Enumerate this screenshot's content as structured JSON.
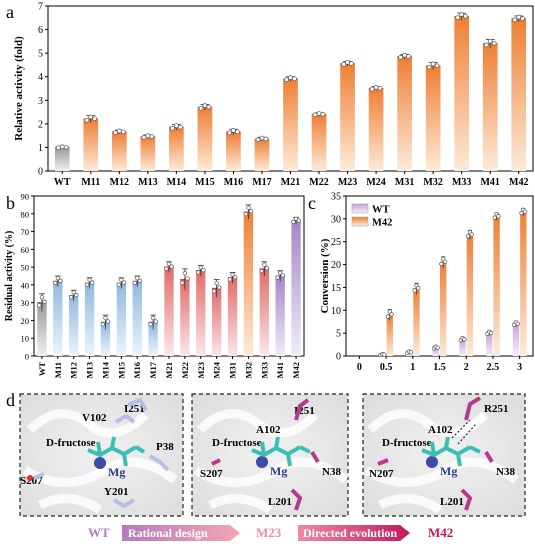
{
  "chart_data": [
    {
      "panel": "a",
      "type": "bar",
      "ylabel": "Relative activity (fold)",
      "ylim": [
        0,
        7
      ],
      "yticks": [
        0,
        1,
        2,
        3,
        4,
        5,
        6,
        7
      ],
      "categories": [
        "WT",
        "M11",
        "M12",
        "M13",
        "M14",
        "M15",
        "M16",
        "M17",
        "M21",
        "M22",
        "M23",
        "M24",
        "M31",
        "M32",
        "M33",
        "M41",
        "M42"
      ],
      "values": [
        1.0,
        2.2,
        1.65,
        1.45,
        1.85,
        2.7,
        1.65,
        1.35,
        3.9,
        2.4,
        4.55,
        3.5,
        4.85,
        4.45,
        6.55,
        5.4,
        6.45
      ],
      "errors": [
        0.05,
        0.15,
        0.08,
        0.08,
        0.12,
        0.12,
        0.12,
        0.08,
        0.1,
        0.07,
        0.1,
        0.08,
        0.1,
        0.15,
        0.15,
        0.18,
        0.13
      ],
      "colors": {
        "WT": "#a6a6a6",
        "mutant": "#ef7f35"
      }
    },
    {
      "panel": "b",
      "type": "bar",
      "ylabel": "Residual activity (%)",
      "ylim": [
        0,
        90
      ],
      "yticks": [
        0,
        10,
        20,
        30,
        40,
        50,
        60,
        70,
        80,
        90
      ],
      "categories": [
        "WT",
        "M11",
        "M12",
        "M13",
        "M14",
        "M15",
        "M16",
        "M17",
        "M21",
        "M22",
        "M23",
        "M24",
        "M31",
        "M32",
        "M33",
        "M41",
        "M42"
      ],
      "values": [
        30,
        42,
        34,
        41,
        19,
        41,
        42,
        19,
        50,
        43,
        48,
        38,
        44,
        81,
        49,
        45,
        76
      ],
      "errors": [
        5,
        3,
        3,
        3,
        4,
        3,
        3,
        4,
        3,
        6,
        3,
        5,
        3,
        4,
        4,
        3,
        2
      ],
      "groups": [
        "gray",
        "blue",
        "blue",
        "blue",
        "blue",
        "blue",
        "blue",
        "blue",
        "red",
        "red",
        "red",
        "red",
        "red",
        "orange",
        "red",
        "purple",
        "purple"
      ]
    },
    {
      "panel": "c",
      "type": "bar",
      "ylabel": "Conversion (%)",
      "ylim": [
        0,
        35
      ],
      "yticks": [
        0,
        5,
        10,
        15,
        20,
        25,
        30,
        35
      ],
      "categories": [
        "0",
        "0.5",
        "1",
        "1.5",
        "2",
        "2.5",
        "3"
      ],
      "series": [
        {
          "name": "WT",
          "values": [
            0,
            0.3,
            0.8,
            1.8,
            3.6,
            5.0,
            7.0
          ],
          "errors": [
            0,
            0.2,
            0.3,
            0.4,
            0.5,
            0.5,
            0.6
          ]
        },
        {
          "name": "M42",
          "values": [
            0,
            9.0,
            14.7,
            20.5,
            26.5,
            30.5,
            31.5
          ],
          "errors": [
            0,
            1.2,
            1.2,
            1.2,
            1.0,
            0.8,
            0.8
          ]
        }
      ],
      "legend": "top-left"
    }
  ],
  "panel_labels": {
    "a": "a",
    "b": "b",
    "c": "c",
    "d": "d"
  },
  "panel_d": {
    "structures": [
      {
        "ligand": "D-fructose",
        "metal": "Mg",
        "residues": [
          "V102",
          "I251",
          "P38",
          "S207",
          "Y201"
        ]
      },
      {
        "ligand": "D-fructose",
        "metal": "Mg",
        "residues": [
          "I251",
          "A102",
          "N38",
          "S207",
          "L201"
        ]
      },
      {
        "ligand": "D-fructose",
        "metal": "Mg",
        "residues": [
          "R251",
          "A102",
          "N207",
          "N38",
          "L201"
        ]
      }
    ],
    "flow": {
      "wt": "WT",
      "step1": "Rational design",
      "m23": "M23",
      "step2": "Directed evolution",
      "m42": "M42"
    }
  }
}
